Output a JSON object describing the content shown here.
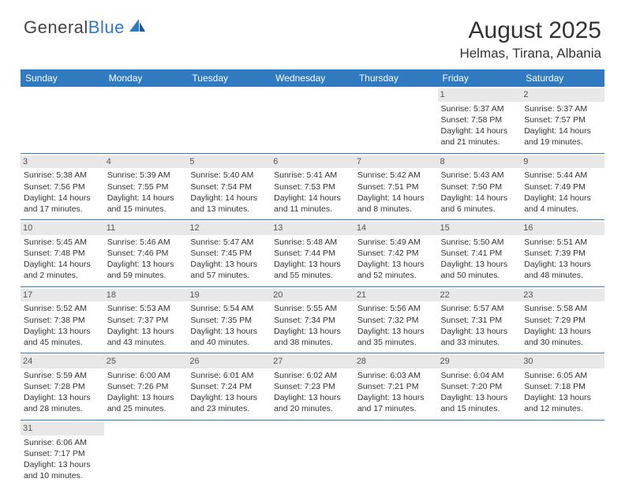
{
  "logo": {
    "text1": "General",
    "text2": "Blue"
  },
  "title": "August 2025",
  "location": "Helmas, Tirana, Albania",
  "colors": {
    "header_bg": "#2f7ac0",
    "header_text": "#ffffff",
    "daynum_bg": "#e8e8e8",
    "text": "#333333",
    "rule": "#2f7ac0"
  },
  "typography": {
    "title_fontsize": 30,
    "location_fontsize": 17,
    "weekday_fontsize": 12,
    "body_fontsize": 10.5
  },
  "weekdays": [
    "Sunday",
    "Monday",
    "Tuesday",
    "Wednesday",
    "Thursday",
    "Friday",
    "Saturday"
  ],
  "weeks": [
    [
      null,
      null,
      null,
      null,
      null,
      {
        "n": "1",
        "sr": "Sunrise: 5:37 AM",
        "ss": "Sunset: 7:58 PM",
        "d1": "Daylight: 14 hours",
        "d2": "and 21 minutes."
      },
      {
        "n": "2",
        "sr": "Sunrise: 5:37 AM",
        "ss": "Sunset: 7:57 PM",
        "d1": "Daylight: 14 hours",
        "d2": "and 19 minutes."
      }
    ],
    [
      {
        "n": "3",
        "sr": "Sunrise: 5:38 AM",
        "ss": "Sunset: 7:56 PM",
        "d1": "Daylight: 14 hours",
        "d2": "and 17 minutes."
      },
      {
        "n": "4",
        "sr": "Sunrise: 5:39 AM",
        "ss": "Sunset: 7:55 PM",
        "d1": "Daylight: 14 hours",
        "d2": "and 15 minutes."
      },
      {
        "n": "5",
        "sr": "Sunrise: 5:40 AM",
        "ss": "Sunset: 7:54 PM",
        "d1": "Daylight: 14 hours",
        "d2": "and 13 minutes."
      },
      {
        "n": "6",
        "sr": "Sunrise: 5:41 AM",
        "ss": "Sunset: 7:53 PM",
        "d1": "Daylight: 14 hours",
        "d2": "and 11 minutes."
      },
      {
        "n": "7",
        "sr": "Sunrise: 5:42 AM",
        "ss": "Sunset: 7:51 PM",
        "d1": "Daylight: 14 hours",
        "d2": "and 8 minutes."
      },
      {
        "n": "8",
        "sr": "Sunrise: 5:43 AM",
        "ss": "Sunset: 7:50 PM",
        "d1": "Daylight: 14 hours",
        "d2": "and 6 minutes."
      },
      {
        "n": "9",
        "sr": "Sunrise: 5:44 AM",
        "ss": "Sunset: 7:49 PM",
        "d1": "Daylight: 14 hours",
        "d2": "and 4 minutes."
      }
    ],
    [
      {
        "n": "10",
        "sr": "Sunrise: 5:45 AM",
        "ss": "Sunset: 7:48 PM",
        "d1": "Daylight: 14 hours",
        "d2": "and 2 minutes."
      },
      {
        "n": "11",
        "sr": "Sunrise: 5:46 AM",
        "ss": "Sunset: 7:46 PM",
        "d1": "Daylight: 13 hours",
        "d2": "and 59 minutes."
      },
      {
        "n": "12",
        "sr": "Sunrise: 5:47 AM",
        "ss": "Sunset: 7:45 PM",
        "d1": "Daylight: 13 hours",
        "d2": "and 57 minutes."
      },
      {
        "n": "13",
        "sr": "Sunrise: 5:48 AM",
        "ss": "Sunset: 7:44 PM",
        "d1": "Daylight: 13 hours",
        "d2": "and 55 minutes."
      },
      {
        "n": "14",
        "sr": "Sunrise: 5:49 AM",
        "ss": "Sunset: 7:42 PM",
        "d1": "Daylight: 13 hours",
        "d2": "and 52 minutes."
      },
      {
        "n": "15",
        "sr": "Sunrise: 5:50 AM",
        "ss": "Sunset: 7:41 PM",
        "d1": "Daylight: 13 hours",
        "d2": "and 50 minutes."
      },
      {
        "n": "16",
        "sr": "Sunrise: 5:51 AM",
        "ss": "Sunset: 7:39 PM",
        "d1": "Daylight: 13 hours",
        "d2": "and 48 minutes."
      }
    ],
    [
      {
        "n": "17",
        "sr": "Sunrise: 5:52 AM",
        "ss": "Sunset: 7:38 PM",
        "d1": "Daylight: 13 hours",
        "d2": "and 45 minutes."
      },
      {
        "n": "18",
        "sr": "Sunrise: 5:53 AM",
        "ss": "Sunset: 7:37 PM",
        "d1": "Daylight: 13 hours",
        "d2": "and 43 minutes."
      },
      {
        "n": "19",
        "sr": "Sunrise: 5:54 AM",
        "ss": "Sunset: 7:35 PM",
        "d1": "Daylight: 13 hours",
        "d2": "and 40 minutes."
      },
      {
        "n": "20",
        "sr": "Sunrise: 5:55 AM",
        "ss": "Sunset: 7:34 PM",
        "d1": "Daylight: 13 hours",
        "d2": "and 38 minutes."
      },
      {
        "n": "21",
        "sr": "Sunrise: 5:56 AM",
        "ss": "Sunset: 7:32 PM",
        "d1": "Daylight: 13 hours",
        "d2": "and 35 minutes."
      },
      {
        "n": "22",
        "sr": "Sunrise: 5:57 AM",
        "ss": "Sunset: 7:31 PM",
        "d1": "Daylight: 13 hours",
        "d2": "and 33 minutes."
      },
      {
        "n": "23",
        "sr": "Sunrise: 5:58 AM",
        "ss": "Sunset: 7:29 PM",
        "d1": "Daylight: 13 hours",
        "d2": "and 30 minutes."
      }
    ],
    [
      {
        "n": "24",
        "sr": "Sunrise: 5:59 AM",
        "ss": "Sunset: 7:28 PM",
        "d1": "Daylight: 13 hours",
        "d2": "and 28 minutes."
      },
      {
        "n": "25",
        "sr": "Sunrise: 6:00 AM",
        "ss": "Sunset: 7:26 PM",
        "d1": "Daylight: 13 hours",
        "d2": "and 25 minutes."
      },
      {
        "n": "26",
        "sr": "Sunrise: 6:01 AM",
        "ss": "Sunset: 7:24 PM",
        "d1": "Daylight: 13 hours",
        "d2": "and 23 minutes."
      },
      {
        "n": "27",
        "sr": "Sunrise: 6:02 AM",
        "ss": "Sunset: 7:23 PM",
        "d1": "Daylight: 13 hours",
        "d2": "and 20 minutes."
      },
      {
        "n": "28",
        "sr": "Sunrise: 6:03 AM",
        "ss": "Sunset: 7:21 PM",
        "d1": "Daylight: 13 hours",
        "d2": "and 17 minutes."
      },
      {
        "n": "29",
        "sr": "Sunrise: 6:04 AM",
        "ss": "Sunset: 7:20 PM",
        "d1": "Daylight: 13 hours",
        "d2": "and 15 minutes."
      },
      {
        "n": "30",
        "sr": "Sunrise: 6:05 AM",
        "ss": "Sunset: 7:18 PM",
        "d1": "Daylight: 13 hours",
        "d2": "and 12 minutes."
      }
    ],
    [
      {
        "n": "31",
        "sr": "Sunrise: 6:06 AM",
        "ss": "Sunset: 7:17 PM",
        "d1": "Daylight: 13 hours",
        "d2": "and 10 minutes."
      },
      null,
      null,
      null,
      null,
      null,
      null
    ]
  ]
}
